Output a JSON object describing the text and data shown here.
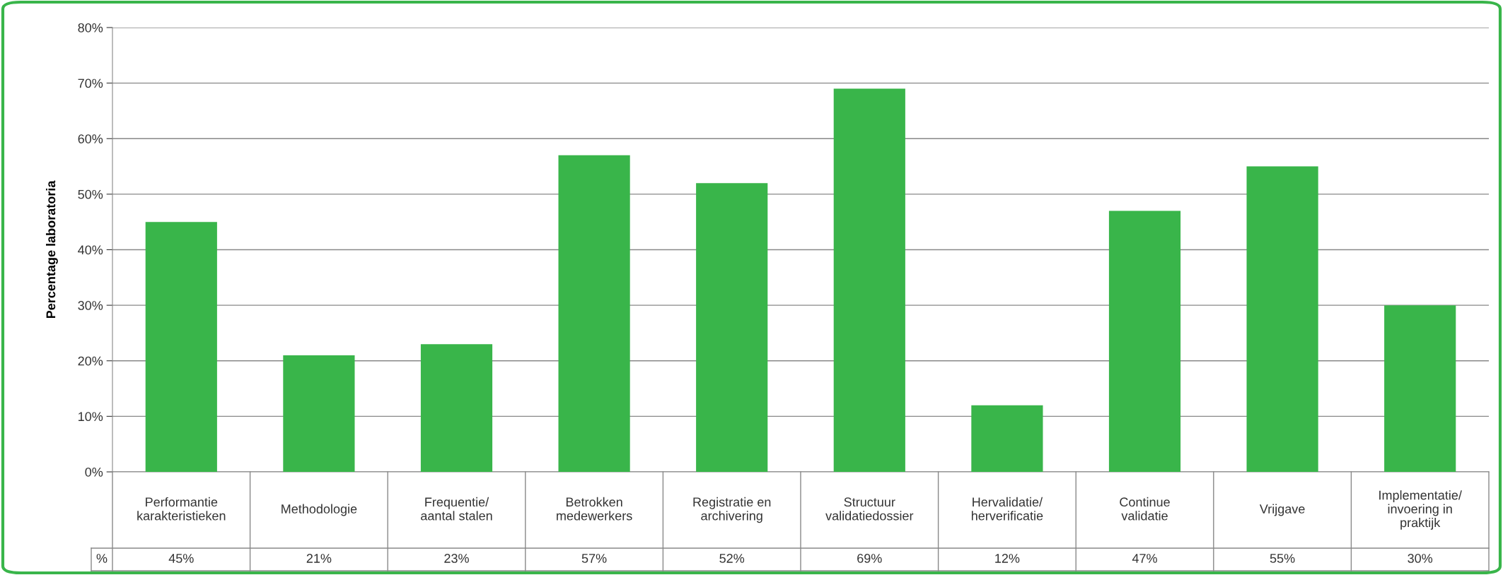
{
  "chart_data": {
    "type": "bar",
    "ylabel": "Percentage laboratoria",
    "categories": [
      "Performantie\nkarakteristieken",
      "Methodologie",
      "Frequentie/\naantal stalen",
      "Betrokken\nmedewerkers",
      "Registratie en\narchivering",
      "Structuur\nvalidatiedossier",
      "Hervalidatie/\nherverificatie",
      "Continue\nvalidatie",
      "Vrijgave",
      "Implementatie/\ninvoering in\npraktijk"
    ],
    "values": [
      45,
      21,
      23,
      57,
      52,
      69,
      12,
      47,
      55,
      30
    ],
    "value_labels": [
      "45%",
      "21%",
      "23%",
      "57%",
      "52%",
      "69%",
      "12%",
      "47%",
      "55%",
      "30%"
    ],
    "annotations": [
      "%"
    ],
    "color": "#39b54a",
    "ylim": [
      0,
      80
    ],
    "yticks": [
      {
        "value": 0,
        "label": "0%"
      },
      {
        "value": 10,
        "label": "10%"
      },
      {
        "value": 20,
        "label": "20%"
      },
      {
        "value": 30,
        "label": "30%"
      },
      {
        "value": 40,
        "label": "40%"
      },
      {
        "value": 50,
        "label": "50%"
      },
      {
        "value": 60,
        "label": "60%"
      },
      {
        "value": 70,
        "label": "70%"
      },
      {
        "value": 80,
        "label": "80%"
      }
    ],
    "grid": "y"
  }
}
